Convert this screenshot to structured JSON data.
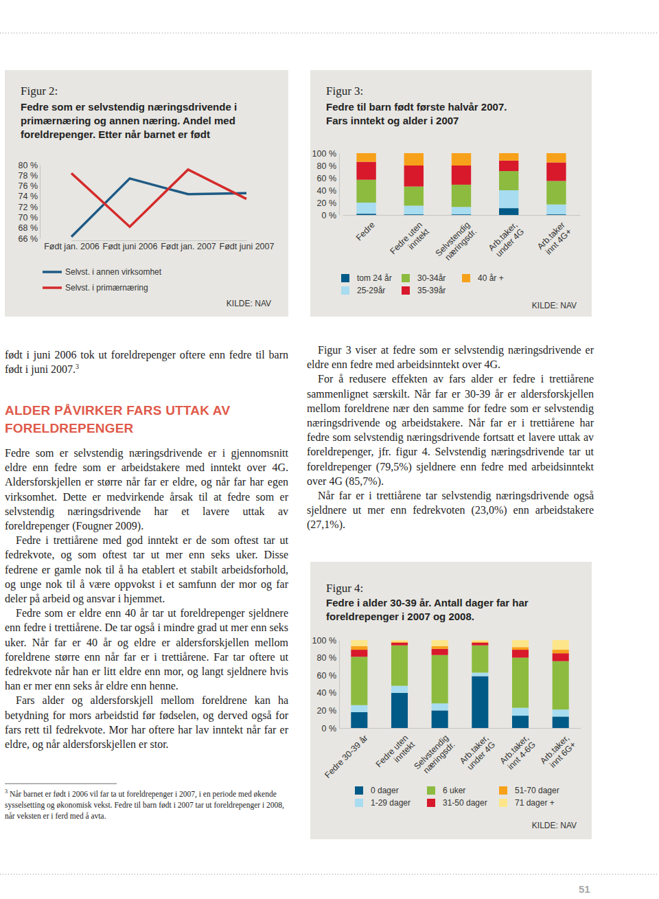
{
  "chart_data": [
    {
      "type": "line",
      "title": "Figur 2:",
      "subtitle": "Fedre som er selvstendig næringsdrivende i\nprimærnæring og annen næring.  Andel med\nforeldrepenger. Etter når barnet er født",
      "categories": [
        "Født jan. 2006",
        "Født juni 2006",
        "Født jan. 2007",
        "Født juni 2007"
      ],
      "series": [
        {
          "name": "Selvst. i annen virksomhet",
          "color": "#1f5a84",
          "values": [
            66.3,
            77.4,
            74.4,
            74.6
          ]
        },
        {
          "name": "Selvst. i primærnæring",
          "color": "#d42a2a",
          "values": [
            78.4,
            68.2,
            79.1,
            73.5
          ]
        }
      ],
      "ylim": [
        66,
        80
      ],
      "yticks": [
        {
          "value": 66,
          "label": "66 %"
        },
        {
          "value": 68,
          "label": "68 %"
        },
        {
          "value": 70,
          "label": "70 %"
        },
        {
          "value": 72,
          "label": "72 %"
        },
        {
          "value": 74,
          "label": "74 %"
        },
        {
          "value": 76,
          "label": "76 %"
        },
        {
          "value": 78,
          "label": "78 %"
        },
        {
          "value": 80,
          "label": "80 %"
        }
      ],
      "annotations": [
        "KILDE: NAV"
      ]
    },
    {
      "type": "bar",
      "stacked": true,
      "title": "Figur 3:",
      "subtitle": "Fedre til barn født første halvår 2007.\nFars inntekt og alder i 2007",
      "categories": [
        "Fedre",
        "Fedre uten\ninntekt",
        "Selvstendig\nnæringsdr.",
        "Arb.taker,\nunder 4G",
        "Arb.taker\ninnt 4G+"
      ],
      "series": [
        {
          "name": "tom 24 år",
          "color": "#005a87",
          "values": [
            2,
            1,
            1,
            11,
            1
          ]
        },
        {
          "name": "25-29år",
          "color": "#a8dcf0",
          "values": [
            18,
            14,
            12,
            29,
            16
          ]
        },
        {
          "name": "30-34år",
          "color": "#8cbb3f",
          "values": [
            37,
            31,
            36,
            31,
            38
          ]
        },
        {
          "name": "35-39år",
          "color": "#d7192b",
          "values": [
            29,
            34,
            31,
            17,
            30
          ]
        },
        {
          "name": "40 år +",
          "color": "#f7a11a",
          "values": [
            14,
            20,
            20,
            12,
            15
          ]
        }
      ],
      "ylim": [
        0,
        100
      ],
      "yticks": [
        {
          "value": 0,
          "label": "0 %"
        },
        {
          "value": 20,
          "label": "20 %"
        },
        {
          "value": 40,
          "label": "40 %"
        },
        {
          "value": 60,
          "label": "60 %"
        },
        {
          "value": 80,
          "label": "80 %"
        },
        {
          "value": 100,
          "label": "100 %"
        }
      ],
      "annotations": [
        "KILDE: NAV"
      ]
    },
    {
      "type": "bar",
      "stacked": true,
      "title": "Figur 4:",
      "subtitle": "Fedre i alder 30-39 år. Antall dager far har\nforeldrepenger i 2007 og 2008.",
      "categories": [
        "Fedre 30-39 år",
        "Fedre uten\ninntekt",
        "Selvstendig\nnæringsdr.",
        "Arb.taker,\nunder 4G",
        "Arb.taker,\ninnt 4-6G",
        "Arb.taker,\ninnt 6G+"
      ],
      "series": [
        {
          "name": "0 dager",
          "color": "#005a87",
          "values": [
            18,
            40,
            20,
            59,
            14,
            13
          ]
        },
        {
          "name": "1-29 dager",
          "color": "#a8dcf0",
          "values": [
            8,
            8,
            8,
            4,
            9,
            8
          ]
        },
        {
          "name": "6 uker",
          "color": "#8cbb3f",
          "values": [
            55,
            46,
            55,
            31,
            57,
            55
          ]
        },
        {
          "name": "31-50 dager",
          "color": "#d7192b",
          "values": [
            8,
            3,
            7,
            3,
            9,
            9
          ]
        },
        {
          "name": "51-70 dager",
          "color": "#f7a11a",
          "values": [
            4,
            1,
            3,
            1,
            3,
            4
          ]
        },
        {
          "name": "71 dager +",
          "color": "#fde58a",
          "values": [
            7,
            2,
            7,
            2,
            8,
            11
          ]
        }
      ],
      "ylim": [
        0,
        100
      ],
      "yticks": [
        {
          "value": 0,
          "label": "0 %"
        },
        {
          "value": 20,
          "label": "20 %"
        },
        {
          "value": 40,
          "label": "40 %"
        },
        {
          "value": 60,
          "label": "60 %"
        },
        {
          "value": 80,
          "label": "80 %"
        },
        {
          "value": 100,
          "label": "100 %"
        }
      ],
      "annotations": [
        "KILDE: NAV"
      ]
    }
  ],
  "document": {
    "left_column": [
      {
        "type": "paragraph",
        "text": "født i juni 2006 tok ut foreldrepenger oftere enn fedre til barn født i juni 2007.",
        "footnote_ref": "3"
      },
      {
        "type": "heading",
        "text": "ALDER PÅVIRKER FARS UTTAK AV FORELDREPENGER"
      },
      {
        "type": "paragraph",
        "text": "Fedre som er selvstendig næringsdrivende er i gjennomsnitt eldre enn fedre som er arbeidstakere med inntekt over 4G. Aldersforskjellen er større når far er eldre, og når far har egen virksomhet. Dette er medvirkende årsak til at fedre som er selvstendig næringsdrivende har et lavere uttak av foreldrepenger (Fougner 2009)."
      },
      {
        "type": "paragraph",
        "text": "Fedre i trettiårene med god inntekt er de som oftest tar ut fedrekvote, og som oftest tar ut mer enn seks uker. Disse fedrene er gamle nok til å ha etablert et stabilt arbeidsforhold, og unge nok til å være oppvokst i et samfunn der mor og far deler på arbeid og ansvar i hjemmet."
      },
      {
        "type": "paragraph",
        "text": "Fedre som er eldre enn 40 år tar ut foreldrepenger sjeldnere enn fedre i trettiårene. De tar også i mindre grad ut mer enn seks uker. Når far er 40 år og eldre er aldersforskjellen mellom foreldrene større enn når far er i trettiårene. Far tar oftere ut fedrekvote når han er litt eldre enn mor, og langt sjeldnere hvis han er mer enn seks år eldre enn henne."
      },
      {
        "type": "paragraph",
        "text": "Fars alder og aldersforskjell mellom foreldrene kan ha betydning for mors arbeidstid før fødselen, og derved også for fars rett til fedrekvote. Mor har oftere har lav inntekt når far er eldre, og når aldersforskjellen er stor."
      }
    ],
    "right_column": [
      {
        "type": "paragraph",
        "text": "Figur 3 viser at fedre som er selvstendig næringsdrivende er eldre enn fedre med arbeidsinntekt over 4G."
      },
      {
        "type": "paragraph",
        "text": "For å redusere effekten av fars alder er fedre i trettiårene sammenlignet særskilt. Når far er 30-39 år er aldersforskjellen mellom foreldrene nær den samme for fedre som er selvstendig næringsdrivende og arbeidstakere. Når far er i trettiårene har fedre som selvstendig næringsdrivende fortsatt et lavere uttak av foreldrepenger, jfr. figur 4. Selvstendig næringsdrivende tar ut foreldrepenger (79,5%) sjeldnere enn fedre med arbeidsinntekt over 4G (85,7%)."
      },
      {
        "type": "paragraph",
        "text": "Når far er i trettiårene tar selvstendig næringsdrivende også sjeldnere ut mer enn fedrekvoten (23,0%) enn arbeidstakere (27,1%)."
      }
    ],
    "footnote": {
      "marker": "3",
      "text": "Når barnet er født i 2006 vil far ta ut foreldrepenger i 2007, i en periode med økende sysselsetting og økonomisk vekst. Fedre til barn født i 2007 tar ut foreldrepenger i 2008, når veksten er i ferd med å avta."
    },
    "page_number": "51"
  }
}
